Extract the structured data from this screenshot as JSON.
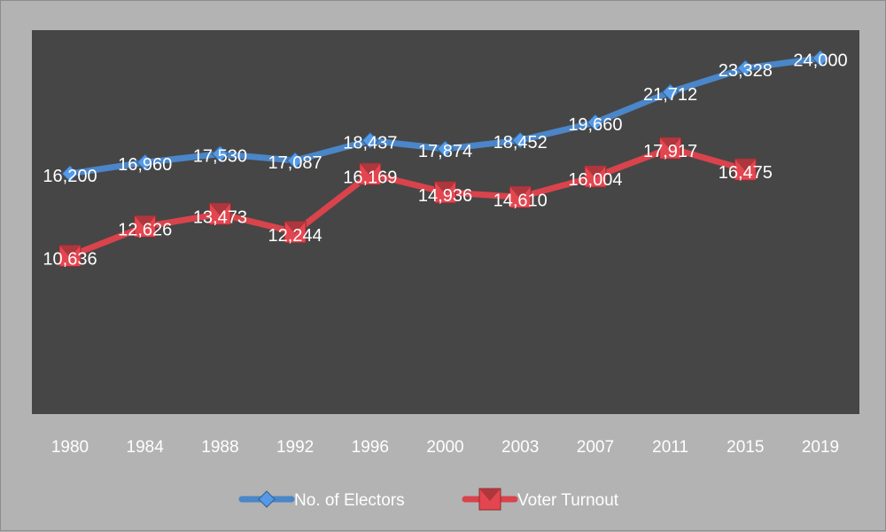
{
  "chart_data": {
    "type": "line",
    "categories": [
      "1980",
      "1984",
      "1988",
      "1992",
      "1996",
      "2000",
      "2003",
      "2007",
      "2011",
      "2015",
      "2019"
    ],
    "series": [
      {
        "name": "No. of Electors",
        "values": [
          16200,
          16960,
          17530,
          17087,
          18437,
          17874,
          18452,
          19660,
          21712,
          23328,
          24000
        ],
        "labels": [
          "16,200",
          "16,960",
          "17,530",
          "17,087",
          "18,437",
          "17,874",
          "18,452",
          "19,660",
          "21,712",
          "23,328",
          "24,000"
        ],
        "color": "#4a86c8",
        "marker": "diamond"
      },
      {
        "name": "Voter Turnout",
        "values": [
          10636,
          12626,
          13473,
          12244,
          16169,
          14936,
          14610,
          16004,
          17917,
          16475,
          null
        ],
        "labels": [
          "10,636",
          "12,626",
          "13,473",
          "12,244",
          "16,169",
          "14,936",
          "14,610",
          "16,004",
          "17,917",
          "16,475",
          null
        ],
        "color": "#d9434c",
        "marker": "square"
      }
    ],
    "title": "",
    "xlabel": "",
    "ylabel": "",
    "ylim": [
      0,
      25000
    ],
    "grid": false,
    "legend": "bottom",
    "plot_background": "#464646",
    "background": "#b3b3b3"
  }
}
